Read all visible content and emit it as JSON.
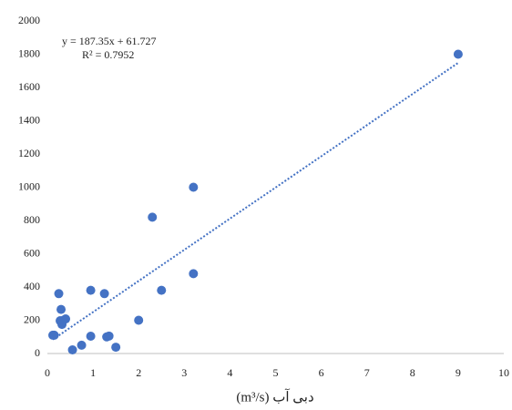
{
  "chart_data": {
    "type": "scatter",
    "x_label": "دبی آب (m³/s)",
    "equation": "y = 187.35x + 61.727",
    "r_squared": "R² = 0.7952",
    "color": "#4472c4",
    "x": [
      9,
      3.2,
      2.3,
      3.2,
      2.5,
      0.95,
      1.25,
      0.25,
      0.3,
      0.28,
      0.35,
      0.4,
      0.32,
      2,
      0.12,
      0.15,
      0.95,
      1.3,
      1.35,
      0.75,
      1.5,
      0.55
    ],
    "values": [
      1800,
      1000,
      820,
      480,
      380,
      380,
      360,
      360,
      265,
      197,
      200,
      208,
      175,
      200,
      110,
      110,
      104,
      100,
      105,
      50,
      38,
      22
    ],
    "trendline": {
      "slope": 187.35,
      "intercept": 61.727,
      "x_range": [
        0.12,
        9
      ]
    },
    "xlim": [
      0,
      10
    ],
    "xticks": [
      0,
      1,
      2,
      3,
      4,
      5,
      6,
      7,
      8,
      9,
      10
    ],
    "ylim": [
      0,
      2000
    ],
    "yticks": [
      0,
      200,
      400,
      600,
      800,
      1000,
      1200,
      1400,
      1600,
      1800,
      2000
    ],
    "grid": false
  }
}
